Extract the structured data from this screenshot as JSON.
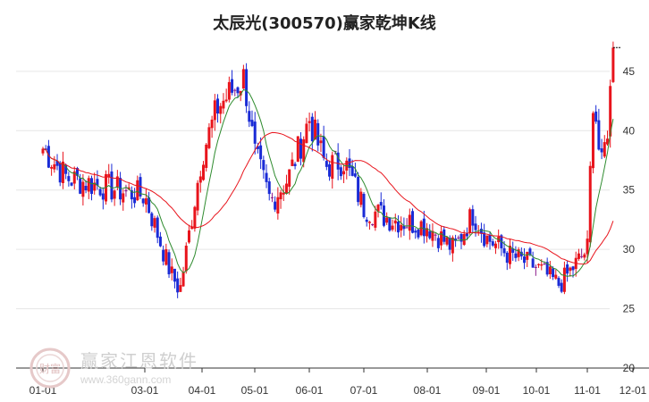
{
  "chart_data": {
    "type": "candlestick",
    "title": "太辰光(300570)赢家乾坤K线",
    "x_ticks": [
      "01-01",
      "03-01",
      "04-01",
      "05-01",
      "06-01",
      "07-01",
      "08-01",
      "09-01",
      "10-01",
      "11-01",
      "12-01"
    ],
    "y_ticks": [
      20,
      25,
      30,
      35,
      40,
      45
    ],
    "ylim": [
      20,
      48
    ],
    "grid": "horizontal",
    "series": [
      {
        "type": "candles",
        "up_color": "#e8141c",
        "down_color": "#1a2bd6",
        "neutral_color": "#8b1a8b",
        "approx_closes": [
          {
            "date": "01-01",
            "close": 38.5
          },
          {
            "date": "01-15",
            "close": 36.0
          },
          {
            "date": "02-01",
            "close": 34.5
          },
          {
            "date": "02-15",
            "close": 28.0
          },
          {
            "date": "02-20",
            "close": 26.5
          },
          {
            "date": "03-01",
            "close": 38.0
          },
          {
            "date": "03-10",
            "close": 42.0
          },
          {
            "date": "03-25",
            "close": 44.5
          },
          {
            "date": "04-01",
            "close": 38.0
          },
          {
            "date": "04-10",
            "close": 34.0
          },
          {
            "date": "04-20",
            "close": 36.0
          },
          {
            "date": "05-01",
            "close": 41.0
          },
          {
            "date": "05-10",
            "close": 37.0
          },
          {
            "date": "05-20",
            "close": 37.5
          },
          {
            "date": "06-01",
            "close": 33.5
          },
          {
            "date": "06-15",
            "close": 32.5
          },
          {
            "date": "07-01",
            "close": 32.0
          },
          {
            "date": "07-15",
            "close": 30.0
          },
          {
            "date": "07-25",
            "close": 33.0
          },
          {
            "date": "08-01",
            "close": 31.0
          },
          {
            "date": "08-15",
            "close": 29.5
          },
          {
            "date": "09-01",
            "close": 28.5
          },
          {
            "date": "09-15",
            "close": 27.0
          },
          {
            "date": "10-01",
            "close": 30.0
          },
          {
            "date": "10-05",
            "close": 43.5
          },
          {
            "date": "10-10",
            "close": 36.5
          },
          {
            "date": "10-15",
            "close": 41.0
          },
          {
            "date": "10-18",
            "close": 47.0
          }
        ]
      },
      {
        "type": "line",
        "color": "#2e8b2e",
        "role": "short moving average"
      },
      {
        "type": "line",
        "color": "#e8141c",
        "role": "long moving average"
      }
    ],
    "annotations": [
      {
        "type": "dashed-line",
        "value": 47.0,
        "color": "#000000"
      }
    ]
  },
  "watermark": {
    "name": "赢家江恩软件",
    "url": "www.360gann.com",
    "logo_text": "财富"
  }
}
